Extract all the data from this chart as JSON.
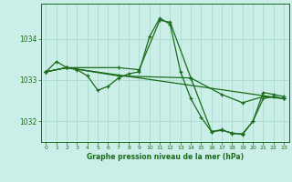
{
  "title": "Graphe pression niveau de la mer (hPa)",
  "background_color": "#cceee8",
  "grid_color": "#aaddcc",
  "line_color": "#1a6b1a",
  "xlim": [
    -0.5,
    23.5
  ],
  "ylim": [
    1031.5,
    1034.85
  ],
  "yticks": [
    1032,
    1033,
    1034
  ],
  "xticks": [
    0,
    1,
    2,
    3,
    4,
    5,
    6,
    7,
    8,
    9,
    10,
    11,
    12,
    13,
    14,
    15,
    16,
    17,
    18,
    19,
    20,
    21,
    22,
    23
  ],
  "lines": [
    {
      "x": [
        0,
        1,
        2,
        3,
        4,
        5,
        6,
        7,
        8,
        9,
        10,
        11,
        12,
        13,
        14,
        15,
        16,
        17,
        18,
        19,
        20,
        21,
        22,
        23
      ],
      "y": [
        1033.2,
        1033.45,
        1033.3,
        1033.25,
        1033.1,
        1032.75,
        1032.85,
        1033.05,
        1033.15,
        1033.2,
        1034.05,
        1034.5,
        1034.35,
        1033.2,
        1032.55,
        1032.1,
        1031.75,
        1031.8,
        1031.7,
        1031.7,
        1032.0,
        1032.7,
        1032.65,
        1032.6
      ]
    },
    {
      "x": [
        0,
        2,
        7,
        9,
        11,
        12,
        14,
        16,
        17,
        18,
        19,
        20,
        21,
        22,
        23
      ],
      "y": [
        1033.2,
        1033.3,
        1033.3,
        1033.25,
        1034.45,
        1034.4,
        1033.05,
        1031.75,
        1031.78,
        1031.72,
        1031.68,
        1032.0,
        1032.55,
        1032.6,
        1032.55
      ]
    },
    {
      "x": [
        0,
        2,
        23
      ],
      "y": [
        1033.2,
        1033.3,
        1032.55
      ]
    },
    {
      "x": [
        0,
        2,
        7,
        14,
        17,
        19,
        21,
        23
      ],
      "y": [
        1033.2,
        1033.3,
        1033.1,
        1033.05,
        1032.65,
        1032.45,
        1032.6,
        1032.55
      ]
    }
  ]
}
